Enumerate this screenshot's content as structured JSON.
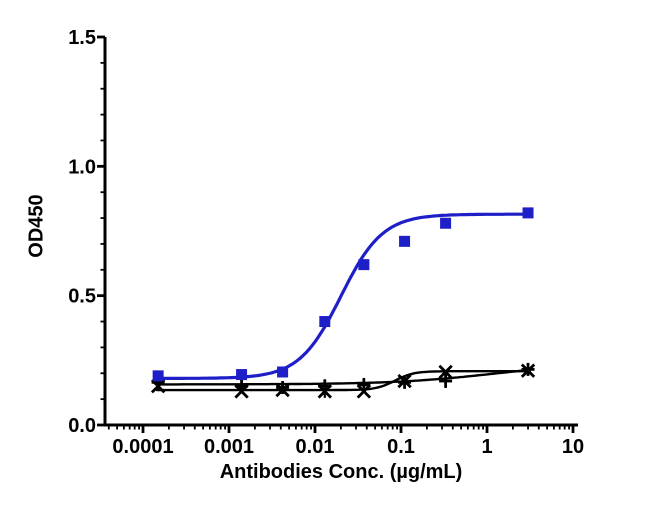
{
  "page": {
    "background_color": "#ffffff",
    "axis_color": "#000000"
  },
  "chart_data": {
    "type": "line",
    "title": "",
    "xlabel": "Antibodies Conc. (µg/mL)",
    "ylabel": "OD450",
    "x_scale": "log",
    "xlim_log10": [
      -4.44,
      1.06
    ],
    "ylim": [
      0,
      1.5
    ],
    "x_ticks": [
      0.0001,
      0.001,
      0.01,
      0.1,
      1,
      10
    ],
    "x_tick_labels": [
      "0.0001",
      "0.001",
      "0.01",
      "0.1",
      "1",
      "10"
    ],
    "y_ticks": [
      0.0,
      0.5,
      1.0,
      1.5
    ],
    "y_tick_labels": [
      "0.0",
      "0.5",
      "1.0",
      "1.5"
    ],
    "y_minor_step": 0.1,
    "grid": false,
    "legend": "none",
    "series": [
      {
        "name": "black-x-series",
        "marker": "x",
        "color": "#000000",
        "line_width": 2.4,
        "x": [
          0.00015,
          0.0014,
          0.0042,
          0.013,
          0.037,
          0.11,
          0.33,
          3
        ],
        "y": [
          0.15,
          0.13,
          0.135,
          0.13,
          0.13,
          0.17,
          0.205,
          0.21
        ],
        "error": [
          0,
          0,
          0,
          0.025,
          0,
          0,
          0,
          0
        ],
        "fit": {
          "model": "4PL",
          "bottom": 0.135,
          "top": 0.208,
          "ec50": 0.085,
          "hill": 4
        }
      },
      {
        "name": "black-plus-series",
        "marker": "plus",
        "color": "#000000",
        "line_width": 2.4,
        "x": [
          0.00015,
          0.0014,
          0.0042,
          0.013,
          0.037,
          0.11,
          0.33,
          3
        ],
        "y": [
          0.165,
          0.15,
          0.145,
          0.15,
          0.155,
          0.165,
          0.17,
          0.215
        ],
        "error": [
          0,
          0,
          0,
          0.027,
          0.027,
          0,
          0.027,
          0
        ],
        "fit": {
          "model": "4PL",
          "bottom": 0.157,
          "top": 0.24,
          "ec50": 1.2,
          "hill": 0.75
        }
      },
      {
        "name": "blue-square-series",
        "marker": "square",
        "color": "#1f1fc8",
        "line_width": 3.2,
        "x": [
          0.00015,
          0.0014,
          0.0042,
          0.013,
          0.037,
          0.11,
          0.33,
          3
        ],
        "y": [
          0.19,
          0.195,
          0.205,
          0.4,
          0.62,
          0.71,
          0.78,
          0.82
        ],
        "error": [
          0,
          0,
          0,
          0,
          0,
          0,
          0,
          0
        ],
        "fit": {
          "model": "4PL",
          "bottom": 0.18,
          "top": 0.815,
          "ec50": 0.02,
          "hill": 1.8
        }
      }
    ]
  }
}
